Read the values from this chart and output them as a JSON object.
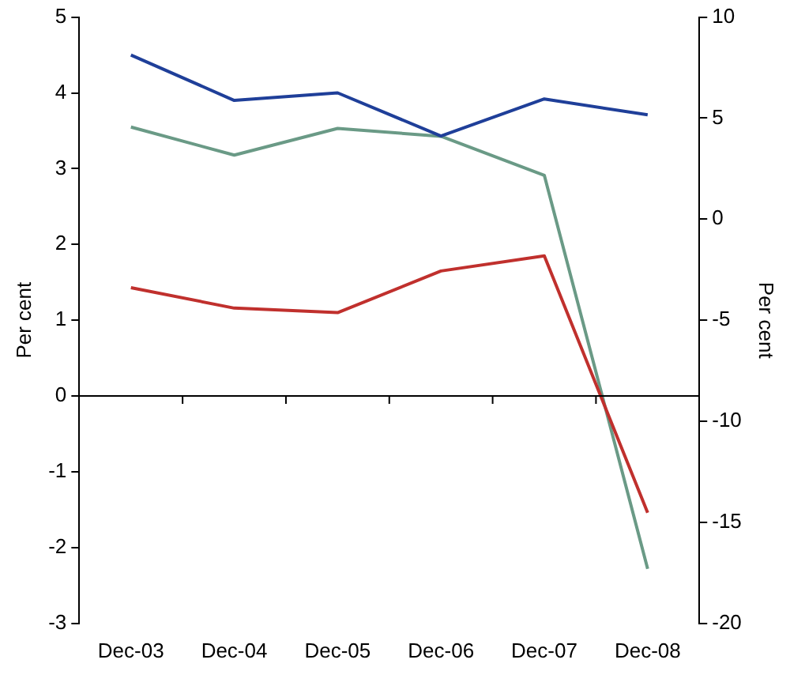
{
  "chart_data": {
    "type": "line",
    "categories": [
      "Dec-03",
      "Dec-04",
      "Dec-05",
      "Dec-06",
      "Dec-07",
      "Dec-08"
    ],
    "ylabel": "Per cent",
    "y2label": "Per cent",
    "ylim": [
      -3,
      5
    ],
    "yticks": [
      -3,
      -2,
      -1,
      0,
      1,
      2,
      3,
      4,
      5
    ],
    "y2lim": [
      -20,
      10
    ],
    "y2ticks": [
      -20,
      -15,
      -10,
      -5,
      0,
      5,
      10
    ],
    "legend": false,
    "marker": "none",
    "line_style": "solid",
    "series": [
      {
        "color": "#1f3f99",
        "values": [
          4.5,
          3.9,
          4.0,
          3.43,
          3.92,
          3.71
        ]
      },
      {
        "color": "#c0302d",
        "values": [
          1.43,
          1.16,
          1.1,
          1.65,
          1.85,
          -1.54
        ]
      },
      {
        "color": "#6a9a86",
        "axis": "y2",
        "values": [
          4.56,
          3.17,
          4.49,
          4.1,
          2.17,
          -17.3
        ]
      }
    ]
  }
}
